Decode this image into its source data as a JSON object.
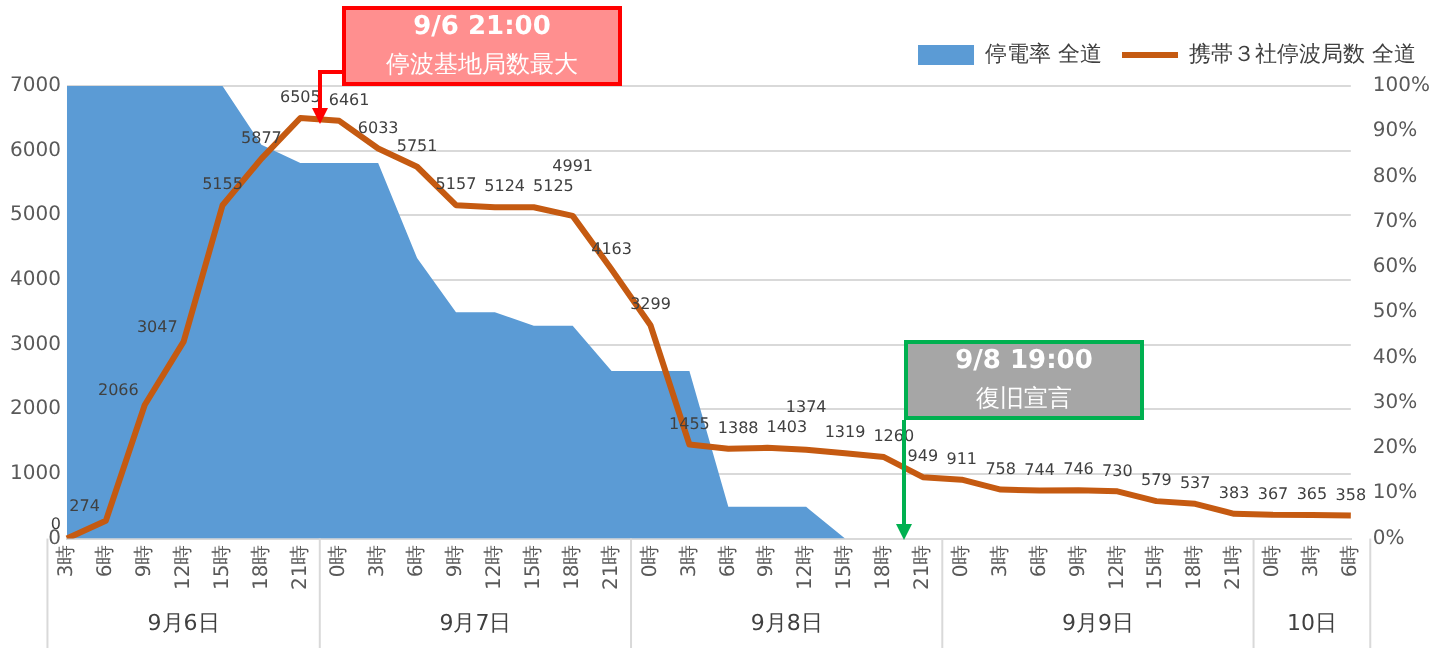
{
  "chart_data": {
    "type": "line",
    "categories": [
      "3時",
      "6時",
      "9時",
      "12時",
      "15時",
      "18時",
      "21時",
      "0時",
      "3時",
      "6時",
      "9時",
      "12時",
      "15時",
      "18時",
      "21時",
      "0時",
      "3時",
      "6時",
      "9時",
      "12時",
      "15時",
      "18時",
      "21時",
      "0時",
      "3時",
      "6時",
      "9時",
      "12時",
      "15時",
      "18時",
      "21時",
      "0時",
      "3時",
      "6時"
    ],
    "series": [
      {
        "name": "停電率 全道",
        "type": "area",
        "axis": "y2",
        "color": "#5b9bd5",
        "values": [
          100,
          100,
          100,
          100,
          100,
          87,
          83,
          83,
          83,
          62,
          50,
          50,
          47,
          47,
          37,
          37,
          37,
          7,
          7,
          7,
          0,
          0,
          null,
          null,
          null,
          null,
          null,
          null,
          null,
          null,
          null,
          null,
          null,
          null
        ]
      },
      {
        "name": "携帯３社停波局数 全道",
        "axis": "y",
        "color": "#c55a11",
        "values": [
          0,
          274,
          2066,
          3047,
          5155,
          5877,
          6505,
          6461,
          6033,
          5751,
          5157,
          5124,
          5125,
          4991,
          4163,
          3299,
          1455,
          1388,
          1403,
          1374,
          1319,
          1260,
          949,
          911,
          758,
          744,
          746,
          730,
          579,
          537,
          383,
          367,
          365,
          358
        ],
        "value_labels": [
          "0",
          "274",
          "2066",
          "3047",
          "5155",
          "5877",
          "6505",
          "6461",
          "6033",
          "5751",
          "5157",
          "5124",
          "5125",
          "4991",
          "4163",
          "3299",
          "1455",
          "1388",
          "1403",
          "1374",
          "1319",
          "1260",
          "949",
          "911",
          "758",
          "744",
          "746",
          "730",
          "579",
          "537",
          "383",
          "367",
          "365",
          "358"
        ]
      }
    ],
    "ylim": [
      0,
      7000
    ],
    "yticks": [
      0,
      1000,
      2000,
      3000,
      4000,
      5000,
      6000,
      7000
    ],
    "y2lim": [
      0,
      100
    ],
    "y2ticks": [
      {
        "value": 0,
        "label": "0%"
      },
      {
        "value": 10,
        "label": "10%"
      },
      {
        "value": 20,
        "label": "20%"
      },
      {
        "value": 30,
        "label": "30%"
      },
      {
        "value": 40,
        "label": "40%"
      },
      {
        "value": 50,
        "label": "50%"
      },
      {
        "value": 60,
        "label": "60%"
      },
      {
        "value": 70,
        "label": "70%"
      },
      {
        "value": 80,
        "label": "80%"
      },
      {
        "value": 90,
        "label": "90%"
      },
      {
        "value": 100,
        "label": "100%"
      }
    ],
    "annotations": [
      "9/6 21:00\n停波基地局数最大",
      "9/8 19:00\n復旧宣言",
      "9月6日",
      "9月7日",
      "9月8日",
      "9月9日",
      "10日"
    ],
    "grid": "y",
    "legend": "top right",
    "marker": "none",
    "line_style": "solid"
  }
}
